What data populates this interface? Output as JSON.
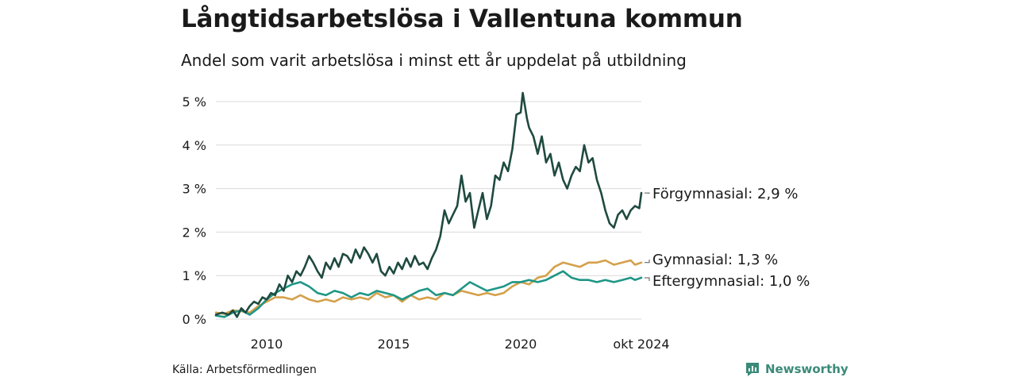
{
  "header": {
    "title": "Långtidsarbetslösa i Vallentuna kommun",
    "subtitle": "Andel som varit arbetslösa i minst ett år uppdelat på utbildning"
  },
  "footer": {
    "source": "Källa: Arbetsförmedlingen",
    "brand": "Newsworthy"
  },
  "colors": {
    "forgymnasial": "#1f4a40",
    "gymnasial": "#d4a04a",
    "eftergymnasial": "#1e9686",
    "grid": "#d9d9d9",
    "brand": "#3a8a78"
  },
  "chart_data": {
    "type": "line",
    "title": "Långtidsarbetslösa i Vallentuna kommun",
    "subtitle": "Andel som varit arbetslösa i minst ett år uppdelat på utbildning",
    "xlabel": "",
    "ylabel": "",
    "xlim": [
      2008.0,
      2024.75
    ],
    "ylim": [
      0,
      5
    ],
    "x_ticks": [
      {
        "value": 2010,
        "label": "2010"
      },
      {
        "value": 2015,
        "label": "2015"
      },
      {
        "value": 2020,
        "label": "2020"
      },
      {
        "value": 2024.75,
        "label": "okt 2024"
      }
    ],
    "y_ticks": [
      {
        "value": 0,
        "label": "0 %"
      },
      {
        "value": 1,
        "label": "1 %"
      },
      {
        "value": 2,
        "label": "2 %"
      },
      {
        "value": 3,
        "label": "3 %"
      },
      {
        "value": 4,
        "label": "4 %"
      },
      {
        "value": 5,
        "label": "5 %"
      }
    ],
    "grid": true,
    "series": [
      {
        "key": "forgymnasial",
        "name": "Förgymnasial",
        "end_label": "Förgymnasial: 2,9 %",
        "points": [
          [
            2008.0,
            0.1
          ],
          [
            2008.25,
            0.15
          ],
          [
            2008.5,
            0.1
          ],
          [
            2008.67,
            0.2
          ],
          [
            2008.83,
            0.05
          ],
          [
            2009.0,
            0.25
          ],
          [
            2009.17,
            0.15
          ],
          [
            2009.33,
            0.3
          ],
          [
            2009.5,
            0.4
          ],
          [
            2009.67,
            0.35
          ],
          [
            2009.83,
            0.5
          ],
          [
            2010.0,
            0.45
          ],
          [
            2010.17,
            0.6
          ],
          [
            2010.33,
            0.55
          ],
          [
            2010.5,
            0.8
          ],
          [
            2010.67,
            0.65
          ],
          [
            2010.83,
            1.0
          ],
          [
            2011.0,
            0.85
          ],
          [
            2011.17,
            1.1
          ],
          [
            2011.33,
            1.0
          ],
          [
            2011.5,
            1.2
          ],
          [
            2011.67,
            1.45
          ],
          [
            2011.83,
            1.3
          ],
          [
            2012.0,
            1.1
          ],
          [
            2012.17,
            0.95
          ],
          [
            2012.33,
            1.3
          ],
          [
            2012.5,
            1.15
          ],
          [
            2012.67,
            1.4
          ],
          [
            2012.83,
            1.2
          ],
          [
            2013.0,
            1.5
          ],
          [
            2013.17,
            1.45
          ],
          [
            2013.33,
            1.3
          ],
          [
            2013.5,
            1.6
          ],
          [
            2013.67,
            1.4
          ],
          [
            2013.83,
            1.65
          ],
          [
            2014.0,
            1.5
          ],
          [
            2014.17,
            1.3
          ],
          [
            2014.33,
            1.5
          ],
          [
            2014.5,
            1.1
          ],
          [
            2014.67,
            1.0
          ],
          [
            2014.83,
            1.2
          ],
          [
            2015.0,
            1.05
          ],
          [
            2015.17,
            1.3
          ],
          [
            2015.33,
            1.15
          ],
          [
            2015.5,
            1.4
          ],
          [
            2015.67,
            1.2
          ],
          [
            2015.83,
            1.45
          ],
          [
            2016.0,
            1.25
          ],
          [
            2016.17,
            1.3
          ],
          [
            2016.33,
            1.15
          ],
          [
            2016.5,
            1.4
          ],
          [
            2016.67,
            1.6
          ],
          [
            2016.83,
            1.9
          ],
          [
            2017.0,
            2.5
          ],
          [
            2017.17,
            2.2
          ],
          [
            2017.33,
            2.4
          ],
          [
            2017.5,
            2.6
          ],
          [
            2017.67,
            3.3
          ],
          [
            2017.83,
            2.7
          ],
          [
            2018.0,
            2.9
          ],
          [
            2018.17,
            2.1
          ],
          [
            2018.33,
            2.5
          ],
          [
            2018.5,
            2.9
          ],
          [
            2018.67,
            2.3
          ],
          [
            2018.83,
            2.6
          ],
          [
            2019.0,
            3.3
          ],
          [
            2019.17,
            3.2
          ],
          [
            2019.33,
            3.6
          ],
          [
            2019.5,
            3.4
          ],
          [
            2019.67,
            3.9
          ],
          [
            2019.83,
            4.7
          ],
          [
            2020.0,
            4.75
          ],
          [
            2020.08,
            5.2
          ],
          [
            2020.25,
            4.6
          ],
          [
            2020.33,
            4.4
          ],
          [
            2020.5,
            4.2
          ],
          [
            2020.67,
            3.8
          ],
          [
            2020.83,
            4.2
          ],
          [
            2021.0,
            3.6
          ],
          [
            2021.17,
            3.8
          ],
          [
            2021.33,
            3.3
          ],
          [
            2021.5,
            3.6
          ],
          [
            2021.67,
            3.2
          ],
          [
            2021.83,
            3.0
          ],
          [
            2022.0,
            3.3
          ],
          [
            2022.17,
            3.5
          ],
          [
            2022.33,
            3.4
          ],
          [
            2022.5,
            4.0
          ],
          [
            2022.67,
            3.6
          ],
          [
            2022.83,
            3.7
          ],
          [
            2023.0,
            3.2
          ],
          [
            2023.17,
            2.9
          ],
          [
            2023.33,
            2.5
          ],
          [
            2023.5,
            2.2
          ],
          [
            2023.67,
            2.1
          ],
          [
            2023.83,
            2.4
          ],
          [
            2024.0,
            2.5
          ],
          [
            2024.17,
            2.3
          ],
          [
            2024.33,
            2.5
          ],
          [
            2024.5,
            2.6
          ],
          [
            2024.67,
            2.55
          ],
          [
            2024.75,
            2.9
          ]
        ]
      },
      {
        "key": "gymnasial",
        "name": "Gymnasial",
        "end_label": "Gymnasial: 1,3 %",
        "points": [
          [
            2008.0,
            0.15
          ],
          [
            2008.33,
            0.12
          ],
          [
            2008.67,
            0.2
          ],
          [
            2009.0,
            0.18
          ],
          [
            2009.33,
            0.15
          ],
          [
            2009.67,
            0.3
          ],
          [
            2010.0,
            0.4
          ],
          [
            2010.33,
            0.5
          ],
          [
            2010.67,
            0.5
          ],
          [
            2011.0,
            0.45
          ],
          [
            2011.33,
            0.55
          ],
          [
            2011.67,
            0.45
          ],
          [
            2012.0,
            0.4
          ],
          [
            2012.33,
            0.45
          ],
          [
            2012.67,
            0.4
          ],
          [
            2013.0,
            0.5
          ],
          [
            2013.33,
            0.45
          ],
          [
            2013.67,
            0.5
          ],
          [
            2014.0,
            0.45
          ],
          [
            2014.33,
            0.6
          ],
          [
            2014.67,
            0.5
          ],
          [
            2015.0,
            0.55
          ],
          [
            2015.33,
            0.4
          ],
          [
            2015.67,
            0.55
          ],
          [
            2016.0,
            0.45
          ],
          [
            2016.33,
            0.5
          ],
          [
            2016.67,
            0.45
          ],
          [
            2017.0,
            0.6
          ],
          [
            2017.33,
            0.55
          ],
          [
            2017.67,
            0.65
          ],
          [
            2018.0,
            0.6
          ],
          [
            2018.33,
            0.55
          ],
          [
            2018.67,
            0.6
          ],
          [
            2019.0,
            0.55
          ],
          [
            2019.33,
            0.6
          ],
          [
            2019.67,
            0.75
          ],
          [
            2020.0,
            0.85
          ],
          [
            2020.33,
            0.8
          ],
          [
            2020.67,
            0.95
          ],
          [
            2021.0,
            1.0
          ],
          [
            2021.33,
            1.2
          ],
          [
            2021.67,
            1.3
          ],
          [
            2022.0,
            1.25
          ],
          [
            2022.33,
            1.2
          ],
          [
            2022.67,
            1.3
          ],
          [
            2023.0,
            1.3
          ],
          [
            2023.33,
            1.35
          ],
          [
            2023.67,
            1.25
          ],
          [
            2024.0,
            1.3
          ],
          [
            2024.33,
            1.35
          ],
          [
            2024.5,
            1.25
          ],
          [
            2024.75,
            1.3
          ]
        ]
      },
      {
        "key": "eftergymnasial",
        "name": "Eftergymnasial",
        "end_label": "Eftergymnasial: 1,0 %",
        "points": [
          [
            2008.0,
            0.08
          ],
          [
            2008.33,
            0.05
          ],
          [
            2008.67,
            0.15
          ],
          [
            2009.0,
            0.2
          ],
          [
            2009.33,
            0.1
          ],
          [
            2009.67,
            0.25
          ],
          [
            2010.0,
            0.45
          ],
          [
            2010.33,
            0.6
          ],
          [
            2010.67,
            0.7
          ],
          [
            2011.0,
            0.8
          ],
          [
            2011.33,
            0.85
          ],
          [
            2011.67,
            0.75
          ],
          [
            2012.0,
            0.6
          ],
          [
            2012.33,
            0.55
          ],
          [
            2012.67,
            0.65
          ],
          [
            2013.0,
            0.6
          ],
          [
            2013.33,
            0.5
          ],
          [
            2013.67,
            0.6
          ],
          [
            2014.0,
            0.55
          ],
          [
            2014.33,
            0.65
          ],
          [
            2014.67,
            0.6
          ],
          [
            2015.0,
            0.55
          ],
          [
            2015.33,
            0.45
          ],
          [
            2015.67,
            0.55
          ],
          [
            2016.0,
            0.65
          ],
          [
            2016.33,
            0.7
          ],
          [
            2016.67,
            0.55
          ],
          [
            2017.0,
            0.6
          ],
          [
            2017.33,
            0.55
          ],
          [
            2017.67,
            0.7
          ],
          [
            2018.0,
            0.85
          ],
          [
            2018.33,
            0.75
          ],
          [
            2018.67,
            0.65
          ],
          [
            2019.0,
            0.7
          ],
          [
            2019.33,
            0.75
          ],
          [
            2019.67,
            0.85
          ],
          [
            2020.0,
            0.85
          ],
          [
            2020.33,
            0.9
          ],
          [
            2020.67,
            0.85
          ],
          [
            2021.0,
            0.9
          ],
          [
            2021.33,
            1.0
          ],
          [
            2021.67,
            1.1
          ],
          [
            2022.0,
            0.95
          ],
          [
            2022.33,
            0.9
          ],
          [
            2022.67,
            0.9
          ],
          [
            2023.0,
            0.85
          ],
          [
            2023.33,
            0.9
          ],
          [
            2023.67,
            0.85
          ],
          [
            2024.0,
            0.9
          ],
          [
            2024.33,
            0.95
          ],
          [
            2024.5,
            0.9
          ],
          [
            2024.75,
            0.95
          ]
        ]
      }
    ]
  }
}
